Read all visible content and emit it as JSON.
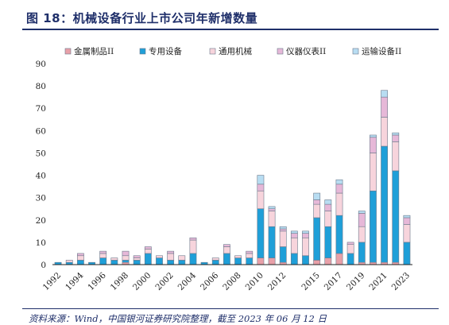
{
  "header": {
    "title": "图 18：机械设备行业上市公司年新增数量"
  },
  "footer": {
    "source": "资料来源：Wind，中国银河证券研究院整理，截至 2023 年 06 月 12 日"
  },
  "chart_data": {
    "type": "bar",
    "stacked": true,
    "legend_position": "top",
    "ylim": [
      0,
      90
    ],
    "yticks": [
      0,
      10,
      20,
      30,
      40,
      50,
      60,
      70,
      80,
      90
    ],
    "x_tick_labels": [
      "1992",
      "1994",
      "1996",
      "1998",
      "2000",
      "2002",
      "2004",
      "2006",
      "2008",
      "2010",
      "2012",
      "2015",
      "2017",
      "2019",
      "2021",
      "2023"
    ],
    "categories": [
      "1992",
      "1993",
      "1994",
      "1995",
      "1996",
      "1997",
      "1998",
      "1999",
      "2000",
      "2001",
      "2002",
      "2003",
      "2004",
      "2005",
      "2006",
      "2007",
      "2008",
      "2009",
      "2010",
      "2011",
      "2012",
      "2013",
      "2014",
      "2015",
      "2016",
      "2017",
      "2018",
      "2019",
      "2020",
      "2021",
      "2022",
      "2023"
    ],
    "series": [
      {
        "name": "金属制品II",
        "color": "#e8a0a8",
        "values": [
          0,
          0,
          0,
          0,
          0,
          0,
          1,
          0,
          0,
          0,
          0,
          0,
          0,
          0,
          0,
          0,
          0,
          0,
          3,
          3,
          1,
          0,
          0,
          2,
          3,
          5,
          0,
          1,
          1,
          1,
          1,
          0
        ]
      },
      {
        "name": "专用设备",
        "color": "#1f9fd8",
        "values": [
          1,
          1,
          2,
          1,
          3,
          2,
          1,
          2,
          5,
          3,
          2,
          2,
          5,
          1,
          2,
          5,
          3,
          3,
          22,
          14,
          7,
          5,
          4,
          19,
          14,
          17,
          5,
          9,
          32,
          52,
          41,
          10
        ]
      },
      {
        "name": "通用机械",
        "color": "#f7d4dc",
        "values": [
          0,
          1,
          2,
          0,
          2,
          1,
          2,
          1,
          2,
          1,
          3,
          2,
          6,
          0,
          1,
          3,
          1,
          2,
          8,
          7,
          7,
          7,
          8,
          6,
          7,
          10,
          4,
          7,
          17,
          13,
          13,
          8
        ]
      },
      {
        "name": "仪器仪表II",
        "color": "#e6b8d8",
        "values": [
          0,
          0,
          1,
          0,
          1,
          0,
          2,
          1,
          1,
          0,
          1,
          0,
          1,
          0,
          0,
          1,
          0,
          1,
          3,
          1,
          1,
          2,
          2,
          2,
          3,
          4,
          1,
          6,
          7,
          9,
          3,
          3
        ]
      },
      {
        "name": "运输设备II",
        "color": "#b8ddf2",
        "values": [
          0,
          0,
          0,
          0,
          0,
          0,
          0,
          0,
          0,
          0,
          0,
          0,
          0,
          0,
          0,
          0,
          0,
          0,
          4,
          1,
          1,
          1,
          1,
          3,
          2,
          2,
          0,
          1,
          1,
          3,
          1,
          1
        ]
      }
    ]
  }
}
